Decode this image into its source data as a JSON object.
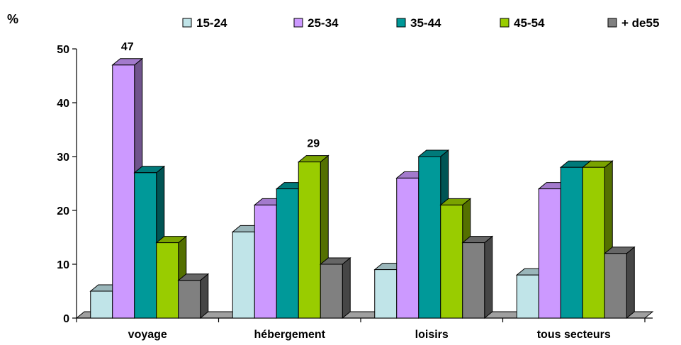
{
  "chart_data": {
    "type": "bar",
    "ylabel": "%",
    "ylim": [
      0,
      50
    ],
    "yticks": [
      0,
      10,
      20,
      30,
      40,
      50
    ],
    "grid": false,
    "legend_position": "top",
    "categories": [
      "voyage",
      "hébergement",
      "loisirs",
      "tous secteurs"
    ],
    "series": [
      {
        "name": "15-24",
        "color": "#c0e4e8",
        "values": [
          5,
          16,
          9,
          8
        ]
      },
      {
        "name": "25-34",
        "color": "#cc99ff",
        "values": [
          47,
          21,
          26,
          24
        ]
      },
      {
        "name": "35-44",
        "color": "#009999",
        "values": [
          27,
          24,
          30,
          28
        ]
      },
      {
        "name": "45-54",
        "color": "#99cc00",
        "values": [
          14,
          29,
          21,
          28
        ]
      },
      {
        "name": "+ de55",
        "color": "#808080",
        "values": [
          7,
          10,
          14,
          12
        ]
      }
    ],
    "data_labels": [
      {
        "category": "voyage",
        "series": "25-34",
        "text": "47"
      },
      {
        "category": "hébergement",
        "series": "45-54",
        "text": "29"
      }
    ]
  }
}
